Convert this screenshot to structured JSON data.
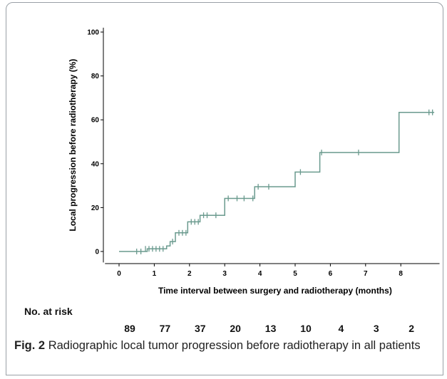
{
  "chart_data": {
    "type": "line",
    "xlabel": "Time interval between surgery and radiotherapy (months)",
    "ylabel": "Local progression before radiotherapy (%)",
    "xlim": [
      -0.4,
      9.1
    ],
    "ylim": [
      -5,
      102
    ],
    "x_ticks": [
      "0",
      "1",
      "2",
      "3",
      "4",
      "5",
      "6",
      "7",
      "8"
    ],
    "y_ticks": [
      "0",
      "20",
      "40",
      "60",
      "80",
      "100"
    ],
    "grid": false,
    "line_color": "#6a9a8e",
    "step": [
      [
        0,
        0
      ],
      [
        0.8,
        0
      ],
      [
        0.8,
        1.2
      ],
      [
        1.35,
        1.2
      ],
      [
        1.35,
        2.5
      ],
      [
        1.45,
        2.5
      ],
      [
        1.45,
        4.5
      ],
      [
        1.6,
        4.5
      ],
      [
        1.6,
        8.5
      ],
      [
        1.95,
        8.5
      ],
      [
        1.95,
        13.5
      ],
      [
        2.3,
        13.5
      ],
      [
        2.3,
        16.5
      ],
      [
        3.0,
        16.5
      ],
      [
        3.0,
        24.2
      ],
      [
        3.85,
        24.2
      ],
      [
        3.85,
        29.5
      ],
      [
        5.0,
        29.5
      ],
      [
        5.0,
        36.2
      ],
      [
        5.7,
        36.2
      ],
      [
        5.7,
        45.1
      ],
      [
        7.95,
        45.1
      ],
      [
        7.95,
        63.4
      ],
      [
        8.95,
        63.4
      ]
    ],
    "censored": [
      [
        0.5,
        0
      ],
      [
        0.62,
        0
      ],
      [
        0.75,
        1.2
      ],
      [
        0.85,
        1.2
      ],
      [
        0.95,
        1.2
      ],
      [
        1.05,
        1.2
      ],
      [
        1.15,
        1.2
      ],
      [
        1.25,
        1.2
      ],
      [
        1.52,
        4.5
      ],
      [
        1.7,
        8.5
      ],
      [
        1.8,
        8.5
      ],
      [
        1.9,
        8.5
      ],
      [
        2.05,
        13.5
      ],
      [
        2.15,
        13.5
      ],
      [
        2.25,
        13.5
      ],
      [
        2.4,
        16.5
      ],
      [
        2.5,
        16.5
      ],
      [
        2.75,
        16.5
      ],
      [
        3.1,
        24.2
      ],
      [
        3.35,
        24.2
      ],
      [
        3.55,
        24.2
      ],
      [
        3.8,
        24.2
      ],
      [
        3.95,
        29.5
      ],
      [
        4.25,
        29.5
      ],
      [
        5.15,
        36.2
      ],
      [
        5.75,
        45.1
      ],
      [
        6.8,
        45.1
      ],
      [
        8.8,
        63.4
      ],
      [
        8.9,
        63.4
      ]
    ],
    "risk_table": {
      "title": "No. at risk",
      "times": [
        0,
        1,
        2,
        3,
        4,
        5,
        6,
        7,
        8
      ],
      "counts": [
        "89",
        "77",
        "37",
        "20",
        "13",
        "10",
        "4",
        "3",
        "2"
      ]
    }
  },
  "caption": {
    "label": "Fig. 2",
    "text": "Radiographic local tumor progression before radiotherapy in all patients"
  }
}
